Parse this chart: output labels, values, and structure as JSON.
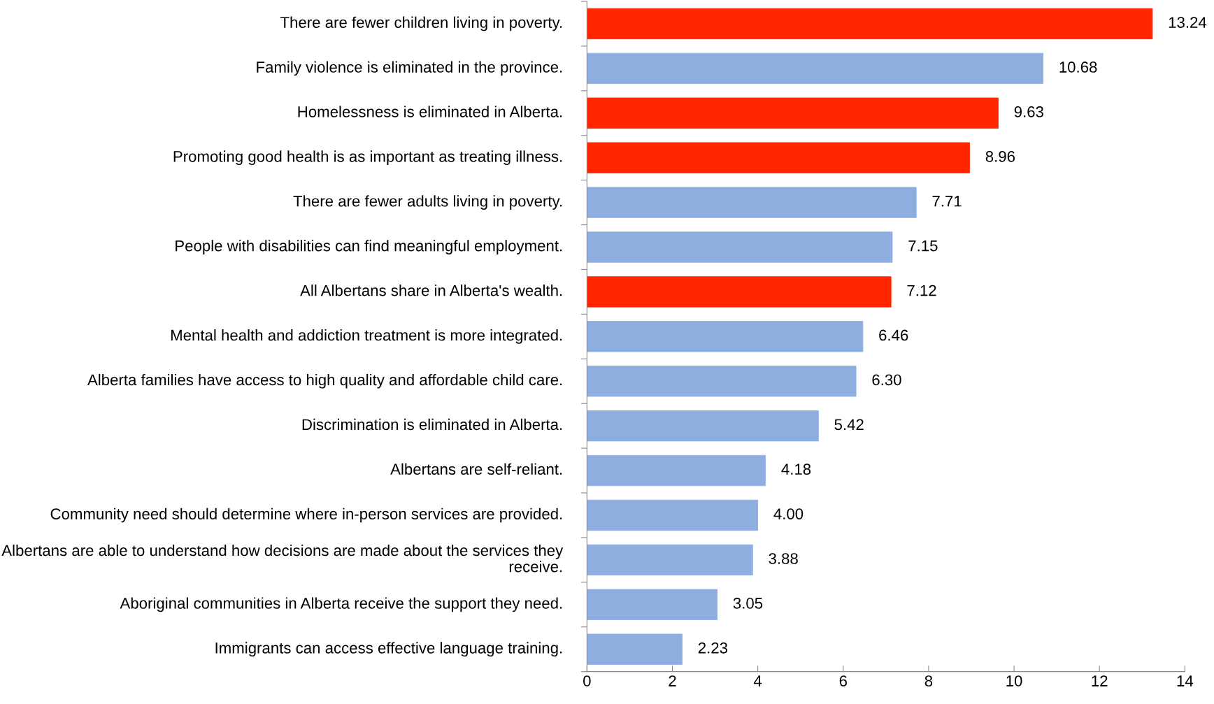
{
  "chart_data": {
    "type": "bar",
    "orientation": "horizontal",
    "categories": [
      "There are fewer children living in poverty.",
      "Family violence is eliminated in the province.",
      "Homelessness is eliminated in Alberta.",
      "Promoting good health is as important as treating illness.",
      "There are fewer adults living in poverty.",
      "People with disabilities can find meaningful employment.",
      "All Albertans share in Alberta's wealth.",
      "Mental health and addiction treatment is more integrated.",
      "Alberta families have access to high quality and affordable child care.",
      "Discrimination is eliminated in Alberta.",
      "Albertans are self-reliant.",
      "Community need should determine where in-person services are provided.",
      "Albertans are able to understand how decisions are made about the services they receive.",
      "Aboriginal communities in Alberta receive the support they need.",
      "Immigrants can access effective language training."
    ],
    "values": [
      13.24,
      10.68,
      9.63,
      8.96,
      7.71,
      7.15,
      7.12,
      6.46,
      6.3,
      5.42,
      4.18,
      4.0,
      3.88,
      3.05,
      2.23
    ],
    "value_labels": [
      "13.24",
      "10.68",
      "9.63",
      "8.96",
      "7.71",
      "7.15",
      "7.12",
      "6.46",
      "6.30",
      "5.42",
      "4.18",
      "4.00",
      "3.88",
      "3.05",
      "2.23"
    ],
    "colors": [
      "#ff2600",
      "#8eaee0",
      "#ff2600",
      "#ff2600",
      "#8eaee0",
      "#8eaee0",
      "#ff2600",
      "#8eaee0",
      "#8eaee0",
      "#8eaee0",
      "#8eaee0",
      "#8eaee0",
      "#8eaee0",
      "#8eaee0",
      "#8eaee0"
    ],
    "xlim": [
      0,
      14
    ],
    "xticks": [
      0,
      2,
      4,
      6,
      8,
      10,
      12,
      14
    ],
    "grid": false,
    "legend": false
  }
}
